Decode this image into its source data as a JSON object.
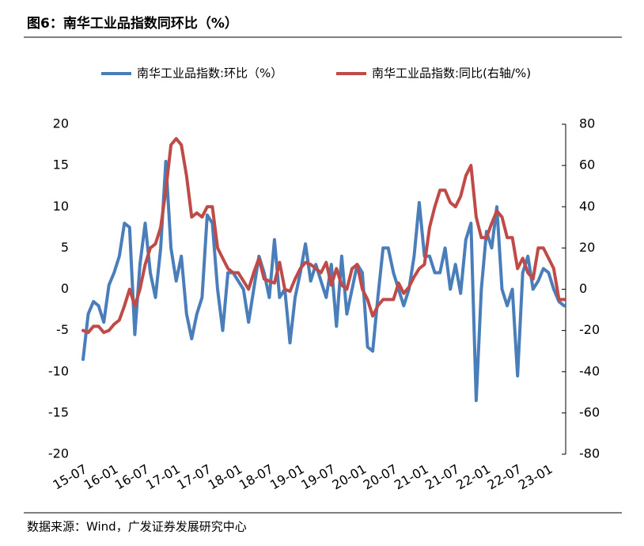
{
  "chart_data": {
    "type": "line",
    "title": "图6：南华工业品指数同环比（%）",
    "source": "数据来源：Wind，广发证券发展研究中心",
    "categories": [
      "15-07",
      null,
      null,
      null,
      null,
      null,
      "16-01",
      null,
      null,
      null,
      null,
      null,
      "16-07",
      null,
      null,
      null,
      null,
      null,
      "17-01",
      null,
      null,
      null,
      null,
      null,
      "17-07",
      null,
      null,
      null,
      null,
      null,
      "18-01",
      null,
      null,
      null,
      null,
      null,
      "18-07",
      null,
      null,
      null,
      null,
      null,
      "19-01",
      null,
      null,
      null,
      null,
      null,
      "19-07",
      null,
      null,
      null,
      null,
      null,
      "20-01",
      null,
      null,
      null,
      null,
      null,
      "20-07",
      null,
      null,
      null,
      null,
      null,
      "21-01",
      null,
      null,
      null,
      null,
      null,
      "21-07",
      null,
      null,
      null,
      null,
      null,
      "22-01",
      null,
      null,
      null,
      null,
      null,
      "22-07",
      null,
      null,
      null,
      null,
      null,
      "23-01",
      null,
      null,
      null
    ],
    "series": [
      {
        "name": "南华工业品指数:环比（%）",
        "color": "#4a7ebb",
        "axis": "y",
        "values": [
          -8.5,
          -3,
          -1.5,
          -2,
          -4,
          0.5,
          2,
          4,
          8,
          7.5,
          -5.5,
          3,
          8,
          2,
          -1,
          5,
          15.5,
          5,
          1,
          4,
          -3,
          -6,
          -3,
          -1,
          9,
          8,
          0,
          -5,
          2,
          2,
          1,
          0,
          -4,
          0,
          4,
          2,
          -1,
          6,
          -1,
          0,
          -6.5,
          -1,
          2,
          5.5,
          1,
          3,
          1,
          -1,
          3,
          -4.5,
          4,
          -3,
          0,
          3,
          2,
          -7,
          -7.5,
          -1,
          5,
          5,
          2,
          0,
          -2,
          0,
          4,
          10.5,
          4,
          4,
          2,
          2,
          5,
          0,
          3,
          -0.5,
          6,
          8,
          -13.5,
          0,
          7,
          5,
          10,
          0,
          -2,
          0,
          -10.5,
          2,
          4,
          0,
          1,
          2.5,
          2,
          0,
          -1.5,
          -2
        ]
      },
      {
        "name": "南华工业品指数:同比(右轴/%)",
        "color": "#be4b48",
        "axis": "y2",
        "values": [
          -20,
          -21,
          -18,
          -18,
          -21,
          -20,
          -17,
          -15,
          -8,
          0,
          -8,
          0,
          12,
          20,
          22,
          30,
          48,
          70,
          73,
          70,
          55,
          35,
          37,
          35,
          40,
          40,
          20,
          15,
          10,
          8,
          8,
          4,
          0,
          8,
          15,
          5,
          4,
          3,
          13,
          0,
          -1,
          5,
          10,
          13,
          12,
          10,
          8,
          13,
          2,
          10,
          2,
          0,
          10,
          12,
          0,
          -5,
          -13,
          -8,
          -5,
          -5,
          -5,
          3,
          -2,
          1,
          6,
          10,
          12,
          30,
          40,
          48,
          48,
          42,
          40,
          45,
          55,
          60,
          35,
          25,
          25,
          32,
          38,
          35,
          25,
          25,
          10,
          15,
          8,
          5,
          20,
          20,
          15,
          10,
          -5,
          -5
        ]
      }
    ],
    "ylim": [
      -20,
      20
    ],
    "yticks": [
      -20,
      -15,
      -10,
      -5,
      0,
      5,
      10,
      15,
      20
    ],
    "y2lim": [
      -80,
      80
    ],
    "y2ticks": [
      -80,
      -60,
      -40,
      -20,
      0,
      20,
      40,
      60,
      80
    ],
    "legend": "top",
    "grid": false
  }
}
